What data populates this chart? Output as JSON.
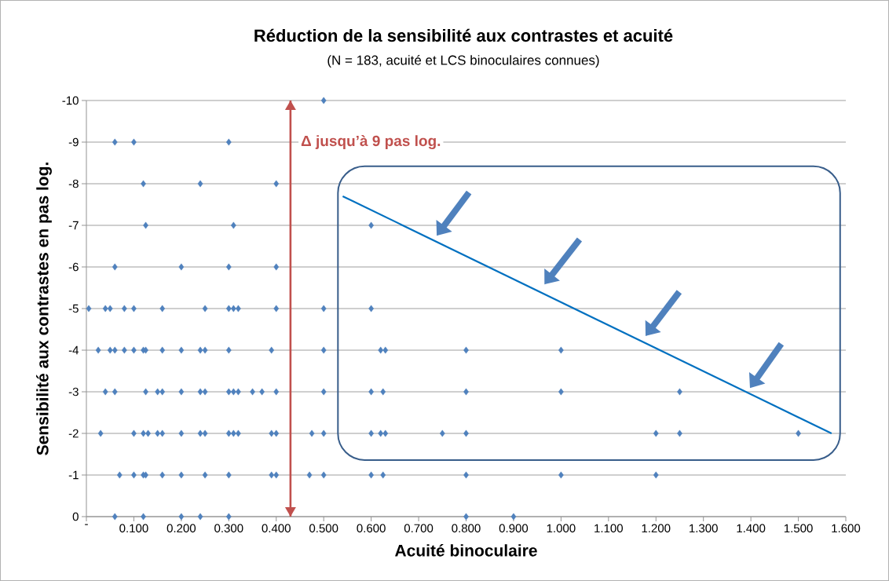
{
  "chart_data": {
    "type": "scatter",
    "title": "Réduction de la sensibilité aux contrastes et acuité",
    "subtitle": "(N = 183, acuité et LCS binoculaires connues)",
    "xlabel": "Acuité binoculaire",
    "ylabel": "Sensibilité aux contrastes en pas log.",
    "series": [
      {
        "color": "#4f81bd",
        "x": [
          0.06,
          0.12,
          0.2,
          0.24,
          0.3,
          0.8,
          0.9,
          0.07,
          0.1,
          0.12,
          0.125,
          0.16,
          0.2,
          0.25,
          0.3,
          0.39,
          0.4,
          0.47,
          0.5,
          0.6,
          0.625,
          0.8,
          1.0,
          1.2,
          0.03,
          0.1,
          0.12,
          0.13,
          0.15,
          0.16,
          0.2,
          0.24,
          0.25,
          0.3,
          0.31,
          0.32,
          0.39,
          0.4,
          0.475,
          0.5,
          0.6,
          0.62,
          0.63,
          0.75,
          0.8,
          1.2,
          1.25,
          1.5,
          0.04,
          0.06,
          0.125,
          0.15,
          0.16,
          0.2,
          0.24,
          0.25,
          0.3,
          0.31,
          0.32,
          0.35,
          0.37,
          0.4,
          0.5,
          0.6,
          0.625,
          0.8,
          1.0,
          1.25,
          0.025,
          0.05,
          0.06,
          0.08,
          0.1,
          0.12,
          0.125,
          0.16,
          0.2,
          0.24,
          0.25,
          0.3,
          0.39,
          0.5,
          0.62,
          0.63,
          0.8,
          1.0,
          0.005,
          0.04,
          0.05,
          0.08,
          0.1,
          0.16,
          0.25,
          0.3,
          0.31,
          0.32,
          0.4,
          0.5,
          0.6,
          0.06,
          0.2,
          0.3,
          0.4,
          0.125,
          0.31,
          0.6,
          0.12,
          0.24,
          0.4,
          0.06,
          0.1,
          0.3,
          0.5
        ],
        "values": [
          0,
          0,
          0,
          0,
          0,
          0,
          0,
          -1,
          -1,
          -1,
          -1,
          -1,
          -1,
          -1,
          -1,
          -1,
          -1,
          -1,
          -1,
          -1,
          -1,
          -1,
          -1,
          -1,
          -2,
          -2,
          -2,
          -2,
          -2,
          -2,
          -2,
          -2,
          -2,
          -2,
          -2,
          -2,
          -2,
          -2,
          -2,
          -2,
          -2,
          -2,
          -2,
          -2,
          -2,
          -2,
          -2,
          -2,
          -3,
          -3,
          -3,
          -3,
          -3,
          -3,
          -3,
          -3,
          -3,
          -3,
          -3,
          -3,
          -3,
          -3,
          -3,
          -3,
          -3,
          -3,
          -3,
          -3,
          -4,
          -4,
          -4,
          -4,
          -4,
          -4,
          -4,
          -4,
          -4,
          -4,
          -4,
          -4,
          -4,
          -4,
          -4,
          -4,
          -4,
          -4,
          -5,
          -5,
          -5,
          -5,
          -5,
          -5,
          -5,
          -5,
          -5,
          -5,
          -5,
          -5,
          -5,
          -6,
          -6,
          -6,
          -6,
          -7,
          -7,
          -7,
          -8,
          -8,
          -8,
          -9,
          -9,
          -9,
          -10
        ]
      },
      {
        "type": "line",
        "color": "#0070c0",
        "marker": "none",
        "x": [
          0.54,
          1.57
        ],
        "values": [
          -7.7,
          -2.0
        ]
      }
    ],
    "xlim": [
      0,
      1.6
    ],
    "xticks": [
      {
        "value": 0,
        "label": "-"
      },
      {
        "value": 0.1,
        "label": "0.100"
      },
      {
        "value": 0.2,
        "label": "0.200"
      },
      {
        "value": 0.3,
        "label": "0.300"
      },
      {
        "value": 0.4,
        "label": "0.400"
      },
      {
        "value": 0.5,
        "label": "0.500"
      },
      {
        "value": 0.6,
        "label": "0.600"
      },
      {
        "value": 0.7,
        "label": "0.700"
      },
      {
        "value": 0.8,
        "label": "0.800"
      },
      {
        "value": 0.9,
        "label": "0.900"
      },
      {
        "value": 1.0,
        "label": "1.000"
      },
      {
        "value": 1.1,
        "label": "1.100"
      },
      {
        "value": 1.2,
        "label": "1.200"
      },
      {
        "value": 1.3,
        "label": "1.300"
      },
      {
        "value": 1.4,
        "label": "1.400"
      },
      {
        "value": 1.5,
        "label": "1.500"
      },
      {
        "value": 1.6,
        "label": "1.600"
      }
    ],
    "ylim": [
      0,
      -10
    ],
    "yticks": [
      0,
      -1,
      -2,
      -3,
      -4,
      -5,
      -6,
      -7,
      -8,
      -9,
      -10
    ],
    "ref_lines": [
      {
        "axis": "x",
        "value": 0.43,
        "label": "Δ jusqu’à 9 pas log.",
        "color": "#c0504d"
      }
    ],
    "grid": "y",
    "marker": "diamond"
  }
}
